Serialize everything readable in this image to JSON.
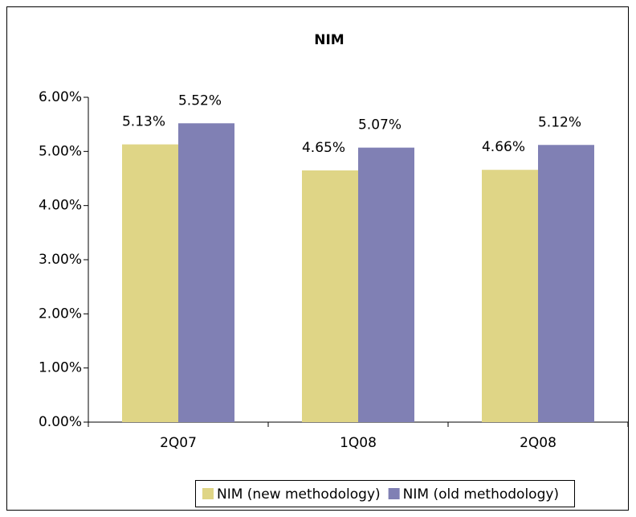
{
  "chart_data": {
    "type": "bar",
    "title": "NIM",
    "categories": [
      "2Q07",
      "1Q08",
      "2Q08"
    ],
    "series": [
      {
        "name": "NIM (new methodology)",
        "color": "#dfd586",
        "values": [
          5.13,
          4.65,
          4.66
        ],
        "value_labels": [
          "5.13%",
          "4.65%",
          "4.66%"
        ]
      },
      {
        "name": "NIM (old methodology)",
        "color": "#8080b4",
        "values": [
          5.52,
          5.07,
          5.12
        ],
        "value_labels": [
          "5.52%",
          "5.07%",
          "5.12%"
        ]
      }
    ],
    "ylim": [
      0,
      6
    ],
    "yticks": [
      {
        "value": 0,
        "label": "0.00%"
      },
      {
        "value": 1,
        "label": "1.00%"
      },
      {
        "value": 2,
        "label": "2.00%"
      },
      {
        "value": 3,
        "label": "3.00%"
      },
      {
        "value": 4,
        "label": "4.00%"
      },
      {
        "value": 5,
        "label": "5.00%"
      },
      {
        "value": 6,
        "label": "6.00%"
      }
    ],
    "grid": false,
    "legend": "bottom"
  }
}
